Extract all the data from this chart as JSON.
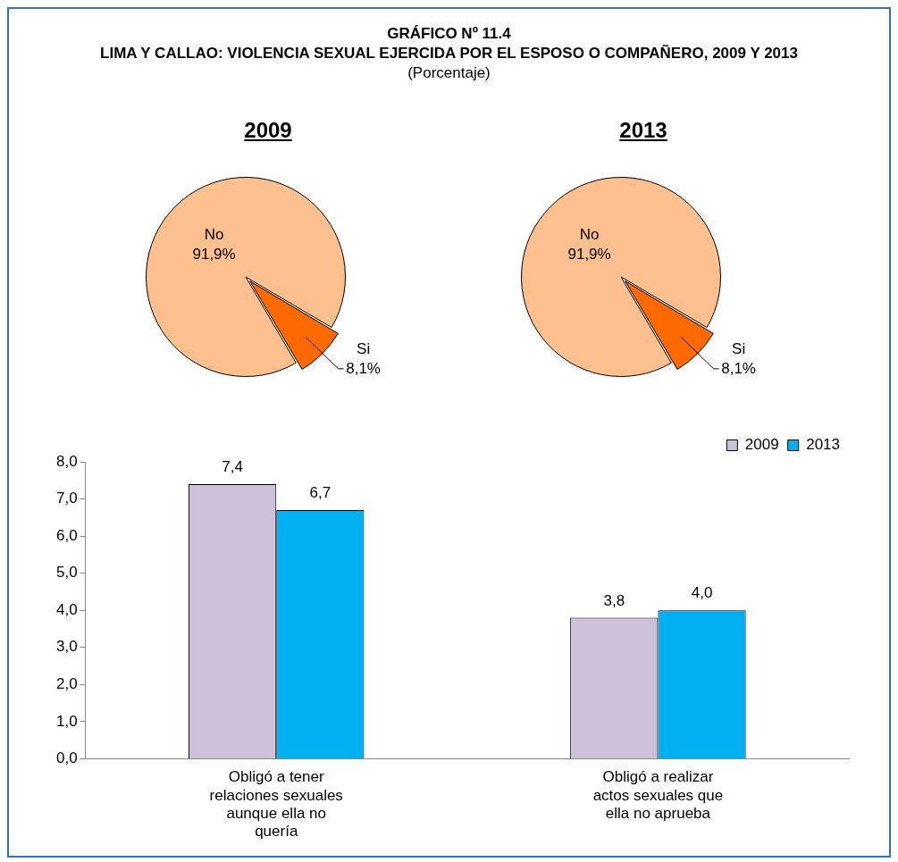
{
  "chart_data": [
    {
      "type": "other",
      "title": "GRÁFICO Nº 11.4",
      "subtitle": "LIMA Y CALLAO: VIOLENCIA SEXUAL EJERCIDA POR EL ESPOSO O COMPAÑERO, 2009 Y 2013",
      "annotations": [
        "(Porcentaje)"
      ]
    },
    {
      "type": "pie",
      "title": "2009",
      "categories": [
        "No",
        "Si"
      ],
      "values": [
        91.9,
        8.1
      ],
      "colors": [
        "#fdc08e",
        "#ff6a00"
      ],
      "value_labels": [
        "91,9%",
        "8,1%"
      ]
    },
    {
      "type": "pie",
      "title": "2013",
      "categories": [
        "No",
        "Si"
      ],
      "values": [
        91.9,
        8.1
      ],
      "colors": [
        "#fdc08e",
        "#ff6a00"
      ],
      "value_labels": [
        "91,9%",
        "8,1%"
      ]
    },
    {
      "type": "bar",
      "categories": [
        "Obligó a tener relaciones sexuales aunque ella no quería",
        "Obligó a realizar actos sexuales que ella no aprueba"
      ],
      "series": [
        {
          "name": "2009",
          "color": "#ccc0da",
          "values": [
            7.4,
            3.8
          ],
          "value_labels": [
            "7,4",
            "3,8"
          ]
        },
        {
          "name": "2013",
          "color": "#00b0f0",
          "values": [
            6.7,
            4.0
          ],
          "value_labels": [
            "6,7",
            "4,0"
          ]
        }
      ],
      "ylim": [
        0,
        8
      ],
      "yticks": [
        {
          "value": 0,
          "label": "0,0"
        },
        {
          "value": 1,
          "label": "1,0"
        },
        {
          "value": 2,
          "label": "2,0"
        },
        {
          "value": 3,
          "label": "3,0"
        },
        {
          "value": 4,
          "label": "4,0"
        },
        {
          "value": 5,
          "label": "5,0"
        },
        {
          "value": 6,
          "label": "6,0"
        },
        {
          "value": 7,
          "label": "7,0"
        },
        {
          "value": 8,
          "label": "8,0"
        }
      ],
      "grid": false,
      "legend": "top right"
    }
  ]
}
